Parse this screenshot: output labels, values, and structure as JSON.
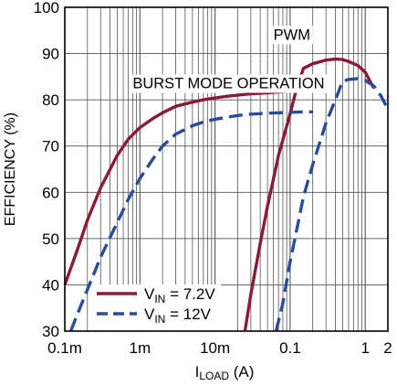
{
  "chart_data": {
    "type": "line",
    "title": "",
    "xlabel_main": "I",
    "xlabel_sub": "LOAD",
    "xlabel_unit": " (A)",
    "ylabel": "EFFICIENCY (%)",
    "x_scale": "log",
    "xlim": [
      0.0001,
      2
    ],
    "ylim": [
      30,
      100
    ],
    "grid": true,
    "y_ticks": [
      30,
      40,
      50,
      60,
      70,
      80,
      90,
      100
    ],
    "x_ticks": [
      {
        "value": 0.0001,
        "label": "0.1m"
      },
      {
        "value": 0.001,
        "label": "1m"
      },
      {
        "value": 0.01,
        "label": "10m"
      },
      {
        "value": 0.1,
        "label": "0.1"
      },
      {
        "value": 1,
        "label": "1"
      },
      {
        "value": 2,
        "label": "2"
      }
    ],
    "annotations": [
      {
        "text": "BURST MODE OPERATION",
        "x": 0.0008,
        "y": 82.5
      },
      {
        "text": "PWM",
        "x": 0.06,
        "y": 93
      }
    ],
    "legend": {
      "placement": "bottom-left",
      "entries": [
        {
          "main": "V",
          "sub": "IN",
          "rest": " = 7.2V"
        },
        {
          "main": "V",
          "sub": "IN",
          "rest": " = 12V"
        }
      ]
    },
    "colors": {
      "vin_7v2": "#8b1a3a",
      "vin_12v": "#2c4a9a"
    },
    "series": [
      {
        "key": "vin_7v2",
        "mode": "burst",
        "dash": false,
        "x": [
          0.0001,
          0.00015,
          0.0002,
          0.0003,
          0.0005,
          0.0007,
          0.001,
          0.0015,
          0.002,
          0.003,
          0.005,
          0.007,
          0.01,
          0.015,
          0.02,
          0.03,
          0.05,
          0.07,
          0.1,
          0.15,
          0.2
        ],
        "y": [
          40,
          48,
          54,
          61,
          68,
          71.5,
          74,
          76,
          77.2,
          78.6,
          79.5,
          80,
          80.4,
          80.8,
          81,
          81.3,
          81.5,
          81.7,
          81.9,
          82.1,
          82.3
        ]
      },
      {
        "key": "vin_7v2",
        "mode": "pwm",
        "dash": false,
        "x": [
          0.025,
          0.03,
          0.04,
          0.05,
          0.07,
          0.1,
          0.12,
          0.15,
          0.2,
          0.3,
          0.4,
          0.5,
          0.6,
          0.8,
          1,
          1.3
        ],
        "y": [
          30,
          38,
          49,
          57,
          68,
          77,
          82,
          86.8,
          87.8,
          88.6,
          88.8,
          88.7,
          88.3,
          87.4,
          86,
          82.5
        ]
      },
      {
        "key": "vin_12v",
        "mode": "burst",
        "dash": true,
        "x": [
          0.00012,
          0.00015,
          0.0002,
          0.0003,
          0.0005,
          0.0007,
          0.001,
          0.0015,
          0.002,
          0.003,
          0.005,
          0.007,
          0.01,
          0.015,
          0.02,
          0.03,
          0.05,
          0.07,
          0.1,
          0.15,
          0.2
        ],
        "y": [
          30,
          34,
          39,
          46,
          53.5,
          58.5,
          63,
          67.3,
          70,
          72.6,
          74.4,
          75.2,
          75.8,
          76.3,
          76.6,
          76.9,
          77.1,
          77.2,
          77.3,
          77.4,
          77.4
        ]
      },
      {
        "key": "vin_12v",
        "mode": "pwm",
        "dash": true,
        "x": [
          0.065,
          0.08,
          0.1,
          0.13,
          0.15,
          0.2,
          0.3,
          0.4,
          0.5,
          0.6,
          0.8,
          1,
          1.3,
          1.6,
          2
        ],
        "y": [
          30,
          36,
          45,
          54,
          59,
          66,
          75,
          80,
          84,
          84.4,
          84.6,
          84.2,
          83,
          81,
          78
        ]
      }
    ]
  }
}
